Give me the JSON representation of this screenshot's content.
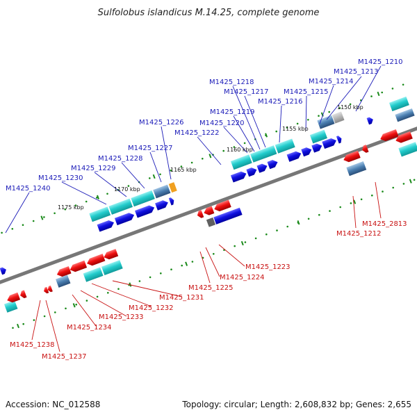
{
  "title": "Sulfolobus islandicus M.14.25, complete genome",
  "footer": {
    "accession": "Accession: NC_012588",
    "summary": "Topology: circular; Length: 2,608,832 bp; Genes: 2,655"
  },
  "scale_labels": [
    "1150 kbp",
    "1155 kbp",
    "1160 kbp",
    "1165 kbp",
    "1170 kbp",
    "1175 kbp"
  ],
  "top_gene_labels": [
    "M1425_1210",
    "M1425_1213",
    "M1425_1214",
    "M1425_1215",
    "M1425_1216",
    "M1425_1217",
    "M1425_1218",
    "M1425_1219",
    "M1425_1220",
    "M1425_1222",
    "M1425_1226",
    "M1425_1227",
    "M1425_1228",
    "M1425_1229",
    "M1425_1230",
    "M1425_1240"
  ],
  "bottom_gene_labels": [
    "M1425_2813",
    "M1425_1212",
    "M1425_1223",
    "M1425_1224",
    "M1425_1225",
    "M1425_1231",
    "M1425_1232",
    "M1425_1233",
    "M1425_1234",
    "M1425_1238",
    "M1425_1237"
  ],
  "colors": {
    "forward_cds": "#1010d8",
    "reverse_cds": "#e81010",
    "forward_gene": "#20c8c8",
    "reverse_gene": "#38b0b0",
    "backbone": "#808080",
    "scale_dot": "#1a8a1a",
    "blue_label": "#1a1ab8",
    "red_label": "#c81010"
  }
}
